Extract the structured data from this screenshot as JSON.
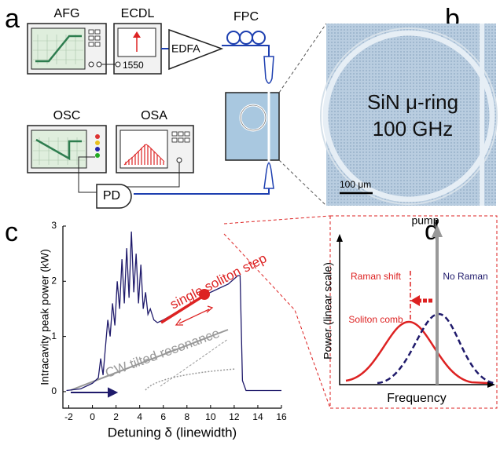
{
  "panel_labels": [
    "a",
    "b",
    "c",
    "d"
  ],
  "setup": {
    "afg": "AFG",
    "ecdl": "ECDL",
    "ecdl_wavelength": "1550",
    "edfa": "EDFA",
    "fpc": "FPC",
    "osc": "OSC",
    "osa": "OSA",
    "pd": "PD"
  },
  "micrograph": {
    "title_line1": "SiN μ-ring",
    "title_line2": "100 GHz",
    "scale_bar": "100 μm"
  },
  "chart_data": {
    "type": "line",
    "x_label": "Detuning δ (linewidth)",
    "y_label": "Intracavity peak power (kW)",
    "x": [
      -2.2,
      -1,
      0,
      0.5,
      0.7,
      0.9,
      1.1,
      1.3,
      1.5,
      1.7,
      1.9,
      2.1,
      2.3,
      2.5,
      2.7,
      2.9,
      3.1,
      3.3,
      3.5,
      3.7,
      3.9,
      4.1,
      4.3,
      4.5,
      4.7,
      4.9,
      5.2,
      5.5,
      6,
      8,
      10,
      11.5,
      12.3,
      12.5,
      12.7,
      13,
      16
    ],
    "series": [
      {
        "color": "#1f1a6b",
        "values": [
          0.02,
          0.05,
          0.15,
          0.25,
          0.6,
          0.3,
          0.8,
          1.3,
          1.0,
          1.6,
          1.2,
          2.0,
          1.5,
          2.4,
          1.6,
          2.6,
          1.7,
          2.9,
          1.8,
          2.5,
          1.6,
          2.3,
          1.5,
          1.8,
          1.4,
          1.5,
          1.3,
          1.25,
          1.3,
          1.55,
          1.8,
          1.95,
          2.1,
          2.1,
          0.2,
          0.02,
          0.02
        ]
      }
    ],
    "xlim": [
      -2.5,
      16
    ],
    "ylim": [
      -0.3,
      3
    ],
    "xticks": [
      -2,
      0,
      2,
      4,
      6,
      8,
      10,
      12,
      14,
      16
    ],
    "yticks": [
      0,
      1,
      2,
      3
    ],
    "annotations": {
      "soliton": "single soliton step",
      "cw": "CW tilted resonance"
    }
  },
  "spectrum": {
    "pump": "pump",
    "raman_shift": "Raman shift",
    "no_raman": "No Raman",
    "soliton_comb": "Soliton comb",
    "y_label": "Power (linear scale)",
    "x_label": "Frequency"
  }
}
